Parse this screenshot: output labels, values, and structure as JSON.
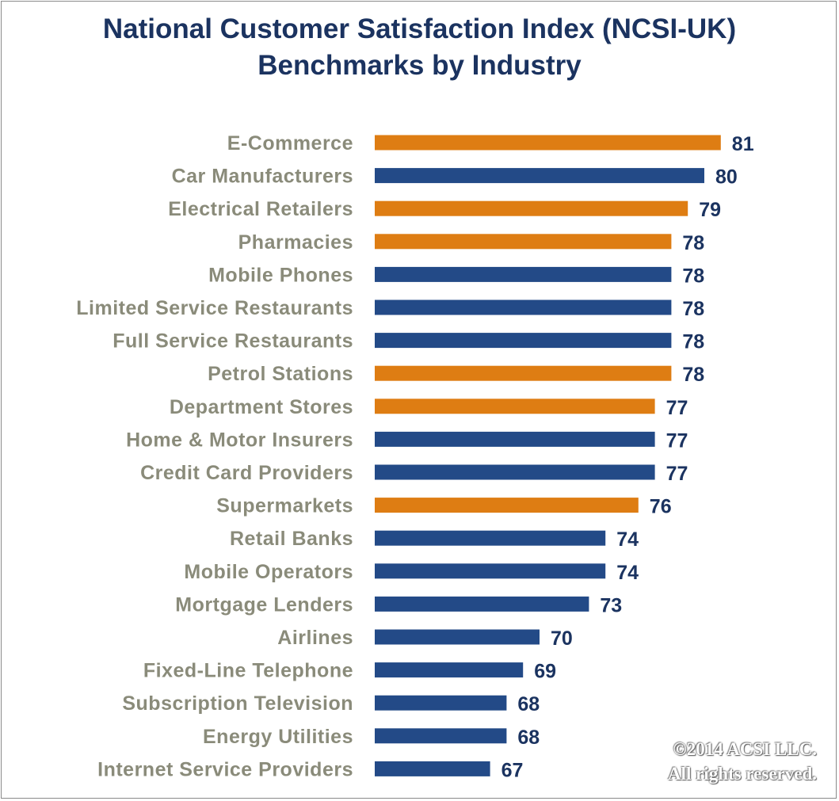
{
  "chart_data": {
    "type": "bar",
    "orientation": "horizontal",
    "title": "National Customer Satisfaction Index (NCSI-UK) Benchmarks by Industry",
    "title_lines": [
      "National Customer Satisfaction Index (NCSI-UK)",
      "Benchmarks by Industry"
    ],
    "xlim": [
      60,
      83
    ],
    "colors": {
      "highlight": "#de7d13",
      "default": "#234a87",
      "category_text": "#8a8b7a",
      "value_text": "#1b3360",
      "title_text": "#1b3360"
    },
    "categories": [
      "E-Commerce",
      "Car Manufacturers",
      "Electrical Retailers",
      "Pharmacies",
      "Mobile Phones",
      "Limited Service Restaurants",
      "Full Service Restaurants",
      "Petrol Stations",
      "Department Stores",
      "Home & Motor Insurers",
      "Credit Card Providers",
      "Supermarkets",
      "Retail Banks",
      "Mobile Operators",
      "Mortgage Lenders",
      "Airlines",
      "Fixed-Line Telephone",
      "Subscription Television",
      "Energy Utilities",
      "Internet Service Providers"
    ],
    "values": [
      81,
      80,
      79,
      78,
      78,
      78,
      78,
      78,
      77,
      77,
      77,
      76,
      74,
      74,
      73,
      70,
      69,
      68,
      68,
      67
    ],
    "highlighted": [
      true,
      false,
      true,
      true,
      false,
      false,
      false,
      true,
      true,
      false,
      false,
      true,
      false,
      false,
      false,
      false,
      false,
      false,
      false,
      false
    ]
  },
  "copyright": {
    "line1": "©2014 ACSI LLC.",
    "line2": "All rights reserved."
  }
}
